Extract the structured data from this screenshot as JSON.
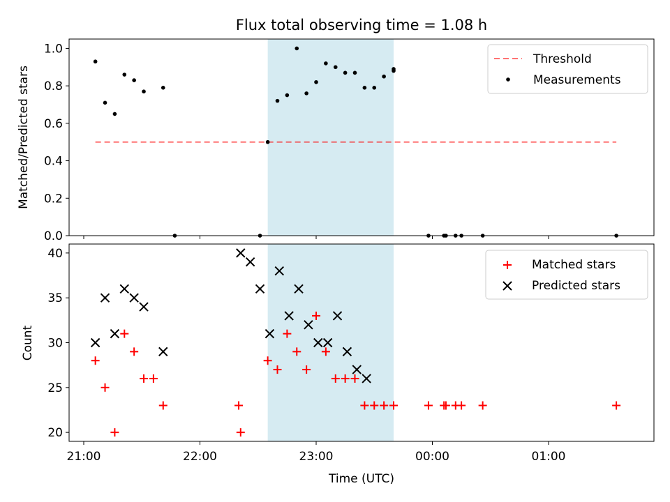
{
  "title": "Flux total observing time = 1.08 h",
  "xlabel": "Time (UTC)",
  "x_tick_labels": [
    "21:00",
    "22:00",
    "23:00",
    "00:00",
    "01:00"
  ],
  "colors": {
    "shade": "#add8e6",
    "threshold": "#ff0000",
    "measurement": "#000000",
    "matched": "#ff0000",
    "predicted": "#000000"
  },
  "chart_data": [
    {
      "type": "scatter",
      "ylabel": "Matched/Predicted stars",
      "xlim": [
        "21:00",
        "01:55"
      ],
      "ylim": [
        0,
        1.05
      ],
      "y_ticks": [
        "0.0",
        "0.2",
        "0.4",
        "0.6",
        "0.8",
        "1.0"
      ],
      "shaded_interval": [
        "22:35",
        "23:40"
      ],
      "legend_position": "top-right",
      "threshold": {
        "name": "Threshold",
        "y": 0.5,
        "x_range": [
          "21:06",
          "01:35"
        ]
      },
      "measurements": {
        "name": "Measurements",
        "x": [
          "21:06",
          "21:11",
          "21:16",
          "21:21",
          "21:26",
          "21:31",
          "21:41",
          "21:47",
          "22:31",
          "22:35",
          "22:40",
          "22:45",
          "22:50",
          "22:55",
          "23:00",
          "23:05",
          "23:10",
          "23:15",
          "23:20",
          "23:25",
          "23:30",
          "23:35",
          "23:40",
          "23:40",
          "23:58",
          "00:06",
          "00:07",
          "00:12",
          "00:15",
          "00:26",
          "01:35"
        ],
        "y": [
          0.93,
          0.71,
          0.65,
          0.86,
          0.83,
          0.77,
          0.79,
          0.0,
          0.0,
          0.5,
          0.72,
          0.75,
          1.0,
          0.76,
          0.82,
          0.92,
          0.9,
          0.87,
          0.87,
          0.79,
          0.79,
          0.85,
          0.89,
          0.88,
          0.0,
          0.0,
          0.0,
          0.0,
          0.0,
          0.0,
          0.0
        ]
      }
    },
    {
      "type": "scatter",
      "ylabel": "Count",
      "xlim": [
        "21:00",
        "01:55"
      ],
      "ylim": [
        19,
        41
      ],
      "y_ticks": [
        "20",
        "25",
        "30",
        "35",
        "40"
      ],
      "shaded_interval": [
        "22:35",
        "23:40"
      ],
      "legend_position": "top-right",
      "series": [
        {
          "name": "Matched stars",
          "marker": "plus",
          "x": [
            "21:06",
            "21:11",
            "21:16",
            "21:21",
            "21:26",
            "21:31",
            "21:36",
            "21:41",
            "22:20",
            "22:21",
            "22:35",
            "22:40",
            "22:45",
            "22:50",
            "22:55",
            "23:00",
            "23:05",
            "23:10",
            "23:15",
            "23:20",
            "23:25",
            "23:30",
            "23:35",
            "23:40",
            "23:58",
            "00:06",
            "00:07",
            "00:12",
            "00:15",
            "00:26",
            "01:35"
          ],
          "y": [
            28,
            25,
            20,
            31,
            29,
            26,
            26,
            23,
            23,
            20,
            28,
            27,
            31,
            29,
            27,
            33,
            29,
            26,
            26,
            26,
            23,
            23,
            23,
            23,
            23,
            23,
            23,
            23,
            23,
            23,
            23
          ]
        },
        {
          "name": "Predicted stars",
          "marker": "x",
          "x": [
            "21:06",
            "21:11",
            "21:16",
            "21:21",
            "21:26",
            "21:31",
            "21:41",
            "22:21",
            "22:26",
            "22:31",
            "22:36",
            "22:41",
            "22:46",
            "22:51",
            "22:56",
            "23:01",
            "23:06",
            "23:11",
            "23:16",
            "23:21",
            "23:26"
          ],
          "y": [
            30,
            35,
            31,
            36,
            35,
            34,
            29,
            40,
            39,
            36,
            31,
            38,
            33,
            36,
            32,
            30,
            30,
            33,
            29,
            27,
            26
          ]
        }
      ]
    }
  ]
}
